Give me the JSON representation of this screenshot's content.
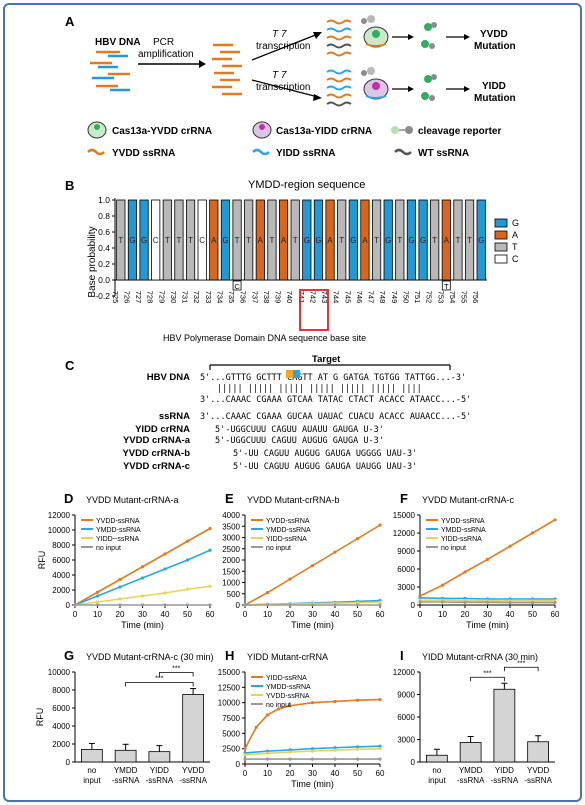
{
  "panelA": {
    "letter": "A",
    "hbv_dna": "HBV DNA",
    "pcr1": "PCR",
    "pcr2": "amplification",
    "t7a": "T 7",
    "transcription_a": "transcription",
    "t7b": "T 7",
    "transcription_b": "transcription",
    "yvdd1": "YVDD",
    "yvdd2": "Mutation",
    "yidd1": "YIDD",
    "yidd2": "Mutation",
    "legend": {
      "cas_yvdd": "Cas13a-YVDD crRNA",
      "cas_yidd": "Cas13a-YIDD crRNA",
      "reporter": "cleavage reporter",
      "yvdd_ssrna": "YVDD ssRNA",
      "yidd_ssrna": "YIDD  ssRNA",
      "wt_ssrna": "WT  ssRNA"
    },
    "colors": {
      "orange": "#e07b1f",
      "blue": "#29a8e0",
      "gray": "#555555",
      "green": "#2fae5f",
      "magenta": "#c22fa8"
    }
  },
  "panelB": {
    "letter": "B",
    "title": "YMDD-region sequence",
    "ylabel": "Base probability",
    "xlabel": "HBV Polymerase Domain DNA sequence base site",
    "ytick_labels": [
      "1.0",
      "0.8",
      "0.6",
      "0.4",
      "0.2",
      "0.0",
      "-0.2"
    ],
    "legend": [
      "G",
      "A",
      "T",
      "C"
    ],
    "colors": {
      "G": "#1f9ad6",
      "A": "#d9661a",
      "T": "#b8b8b8",
      "C": "#ffffff"
    },
    "site_labels": [
      "725",
      "726",
      "727",
      "728",
      "729",
      "730",
      "731",
      "732",
      "733",
      "734",
      "735",
      "736",
      "737",
      "738",
      "739",
      "740",
      "741",
      "742",
      "743",
      "744",
      "745",
      "746",
      "747",
      "748",
      "749",
      "750",
      "751",
      "752",
      "753",
      "754",
      "755",
      "756"
    ],
    "base_letters": [
      "T",
      "G",
      "G",
      "C",
      "T",
      "T",
      "T",
      "C",
      "A",
      "G",
      "T",
      "T",
      "A",
      "T",
      "A",
      "T",
      "G",
      "G",
      "A",
      "T",
      "G",
      "A",
      "T",
      "G",
      "T",
      "G",
      "G",
      "T",
      "A",
      "T",
      "T",
      "G"
    ],
    "below_letters": [
      {
        "site": "735",
        "letter": "C"
      },
      {
        "site": "753",
        "letter": "T"
      }
    ]
  },
  "panelC": {
    "letter": "C",
    "target_label": "Target",
    "rows": [
      {
        "label": "HBV DNA",
        "seq": "5'...GTTTG GCTTT CAGTT AT   G GATGA TGTGG TATTGG...-3'"
      },
      {
        "label": "",
        "seq": "||||| ||||| ||||| ||||| ||||| ||||| ||||"
      },
      {
        "label": "",
        "seq": "3'...CAAAC CGAAA GTCAA TATAC CTACT ACACC ATAACC...-5'"
      },
      {
        "label": "ssRNA",
        "seq": "3'...CAAAC CGAAA GUCAA UAUAC CUACU ACACC AUAACC...-5'"
      },
      {
        "label": "YIDD crRNA",
        "seq": "5'-UGGCUUU CAGUU AUAUU GAUGA U-3'"
      },
      {
        "label": "YVDD crRNA-a",
        "seq": "5'-UGGCUUU CAGUU AUGUG GAUGA U-3'"
      },
      {
        "label": "YVDD crRNA-b",
        "seq": "5'-UU CAGUU AUGUG GAUGA UGGGG UAU-3'"
      },
      {
        "label": "YVDD crRNA-c",
        "seq": "5'-UU CAGUU AUGUG GAUGA UAUGG UAU-3'"
      }
    ]
  },
  "panelD": {
    "letter": "D",
    "chart_data": {
      "type": "line",
      "title": "YVDD Mutant-crRNA-a",
      "xlabel": "Time (min)",
      "ylabel": "RFU",
      "xlim": [
        0,
        60
      ],
      "ylim": [
        0,
        12000
      ],
      "xticks": [
        0,
        10,
        20,
        30,
        40,
        50,
        60
      ],
      "yticks": [
        0,
        2000,
        4000,
        6000,
        8000,
        10000,
        12000
      ],
      "series": [
        {
          "name": "YVDD-ssRNA",
          "color": "#e07b1f",
          "x": [
            0,
            10,
            20,
            30,
            40,
            50,
            60
          ],
          "y": [
            0,
            1700,
            3400,
            5100,
            6800,
            8500,
            10200
          ]
        },
        {
          "name": "YMDD-ssRNA",
          "color": "#29a8e0",
          "x": [
            0,
            10,
            20,
            30,
            40,
            50,
            60
          ],
          "y": [
            0,
            1200,
            2400,
            3600,
            4800,
            6000,
            7300
          ]
        },
        {
          "name": "YIDD--ssRNA",
          "color": "#e8d35a",
          "x": [
            0,
            10,
            20,
            30,
            40,
            50,
            60
          ],
          "y": [
            0,
            400,
            800,
            1200,
            1600,
            2100,
            2500
          ]
        },
        {
          "name": "no input",
          "color": "#999999",
          "x": [
            0,
            10,
            20,
            30,
            40,
            50,
            60
          ],
          "y": [
            0,
            0,
            0,
            0,
            0,
            0,
            0
          ]
        }
      ]
    }
  },
  "panelE": {
    "letter": "E",
    "chart_data": {
      "type": "line",
      "title": "YVDD Mutant-crRNA-b",
      "xlabel": "Time (min)",
      "ylabel": "",
      "xlim": [
        0,
        60
      ],
      "ylim": [
        0,
        4000
      ],
      "xticks": [
        0,
        10,
        20,
        30,
        40,
        50,
        60
      ],
      "yticks": [
        0,
        500,
        1000,
        1500,
        2000,
        2500,
        3000,
        3500,
        4000
      ],
      "series": [
        {
          "name": "YVDD-ssRNA",
          "color": "#e07b1f",
          "x": [
            0,
            10,
            20,
            30,
            40,
            50,
            60
          ],
          "y": [
            0,
            550,
            1150,
            1750,
            2350,
            2950,
            3550
          ]
        },
        {
          "name": "YMDD-ssRNA",
          "color": "#29a8e0",
          "x": [
            0,
            10,
            20,
            30,
            40,
            50,
            60
          ],
          "y": [
            0,
            30,
            60,
            90,
            120,
            160,
            200
          ]
        },
        {
          "name": "YIDD-ssRNA",
          "color": "#e8d35a",
          "x": [
            0,
            10,
            20,
            30,
            40,
            50,
            60
          ],
          "y": [
            0,
            20,
            40,
            60,
            80,
            100,
            120
          ]
        },
        {
          "name": "no input",
          "color": "#999999",
          "x": [
            0,
            10,
            20,
            30,
            40,
            50,
            60
          ],
          "y": [
            0,
            0,
            0,
            0,
            0,
            0,
            0
          ]
        }
      ]
    }
  },
  "panelF": {
    "letter": "F",
    "chart_data": {
      "type": "line",
      "title": "YVDD Mutant-crRNA-c",
      "xlabel": "Time (min)",
      "ylabel": "",
      "xlim": [
        0,
        60
      ],
      "ylim": [
        0,
        15000
      ],
      "xticks": [
        0,
        10,
        20,
        30,
        40,
        50,
        60
      ],
      "yticks": [
        0,
        3000,
        6000,
        9000,
        12000,
        15000
      ],
      "series": [
        {
          "name": "YVDD-ssRNA",
          "color": "#e07b1f",
          "x": [
            0,
            10,
            20,
            30,
            40,
            50,
            60
          ],
          "y": [
            1500,
            3300,
            5500,
            7600,
            9800,
            12000,
            14200
          ]
        },
        {
          "name": "YMDD-ssRNA",
          "color": "#29a8e0",
          "x": [
            0,
            10,
            20,
            30,
            40,
            50,
            60
          ],
          "y": [
            1200,
            1100,
            1100,
            1000,
            1000,
            1000,
            1000
          ]
        },
        {
          "name": "YIDD-ssRNA",
          "color": "#e8d35a",
          "x": [
            0,
            10,
            20,
            30,
            40,
            50,
            60
          ],
          "y": [
            800,
            800,
            750,
            700,
            700,
            700,
            700
          ]
        },
        {
          "name": "no input",
          "color": "#999999",
          "x": [
            0,
            10,
            20,
            30,
            40,
            50,
            60
          ],
          "y": [
            500,
            500,
            450,
            450,
            400,
            400,
            400
          ]
        }
      ]
    }
  },
  "panelG": {
    "letter": "G",
    "chart_data": {
      "type": "bar",
      "title": "YVDD Mutant-crRNA-c (30 min)",
      "ylabel": "RFU",
      "ylim": [
        0,
        10000
      ],
      "yticks": [
        0,
        2000,
        4000,
        6000,
        8000,
        10000
      ],
      "categories": [
        "no input",
        "YMDD -ssRNA",
        "YIDD -ssRNA",
        "YVDD -ssRNA"
      ],
      "values": [
        1400,
        1300,
        1150,
        7500
      ],
      "significance": [
        "***",
        "***"
      ]
    }
  },
  "panelH": {
    "letter": "H",
    "chart_data": {
      "type": "line",
      "title": "YIDD Mutant-crRNA",
      "xlabel": "Time (min)",
      "ylabel": "",
      "xlim": [
        0,
        60
      ],
      "ylim": [
        0,
        15000
      ],
      "xticks": [
        0,
        10,
        20,
        30,
        40,
        50,
        60
      ],
      "yticks": [
        0,
        2500,
        5000,
        7500,
        10000,
        12500,
        15000
      ],
      "series": [
        {
          "name": "YIDD-ssRNA",
          "color": "#e07b1f",
          "x": [
            0,
            5,
            10,
            15,
            20,
            30,
            40,
            50,
            60
          ],
          "y": [
            2500,
            6000,
            8000,
            9000,
            9500,
            10000,
            10200,
            10400,
            10500
          ]
        },
        {
          "name": "YMDD-ssRNA",
          "color": "#29a8e0",
          "x": [
            0,
            10,
            20,
            30,
            40,
            50,
            60
          ],
          "y": [
            1800,
            2100,
            2300,
            2500,
            2650,
            2800,
            2900
          ]
        },
        {
          "name": "YVDD-ssRNA",
          "color": "#e8d35a",
          "x": [
            0,
            10,
            20,
            30,
            40,
            50,
            60
          ],
          "y": [
            1500,
            1750,
            1950,
            2100,
            2250,
            2400,
            2500
          ]
        },
        {
          "name": "no input",
          "color": "#999999",
          "x": [
            0,
            10,
            20,
            30,
            40,
            50,
            60
          ],
          "y": [
            800,
            800,
            800,
            800,
            800,
            800,
            800
          ]
        }
      ]
    }
  },
  "panelI": {
    "letter": "I",
    "chart_data": {
      "type": "bar",
      "title": "YIDD Mutant-crRNA (30 min)",
      "ylabel": "",
      "ylim": [
        0,
        12000
      ],
      "yticks": [
        0,
        3000,
        6000,
        9000,
        12000
      ],
      "categories": [
        "no input",
        "YMDD -ssRNA",
        "YIDD -ssRNA",
        "YVDD -ssRNA"
      ],
      "values": [
        900,
        2600,
        9700,
        2700
      ],
      "significance": [
        "***",
        "***"
      ]
    }
  }
}
